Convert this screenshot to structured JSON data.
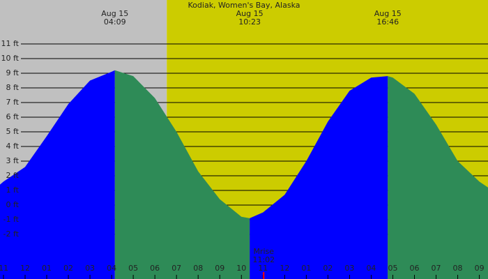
{
  "chart_data": {
    "type": "area",
    "title": "Kodiak, Women's Bay, Alaska",
    "sunrise": 6.55,
    "night_color": "#c0c0c0",
    "day_color": "#cccc00",
    "rising_color": "#0000ff",
    "falling_color": "#2e8b57",
    "grid": true,
    "xlim": [
      -1.16,
      21.4
    ],
    "ylim": [
      -5.05,
      14
    ],
    "x": [
      -1.16,
      -1,
      0,
      1,
      2,
      3,
      4,
      4.15,
      5,
      6,
      7,
      8,
      9,
      10,
      10.383,
      11,
      12,
      13,
      14,
      15,
      16,
      16.767,
      17,
      18,
      19,
      20,
      21,
      21.4
    ],
    "values": [
      1.4,
      1.6,
      2.6,
      4.7,
      6.9,
      8.5,
      9.1,
      9.2,
      8.8,
      7.3,
      5.0,
      2.3,
      0.4,
      -0.8,
      -0.9,
      -0.5,
      0.7,
      3.0,
      5.7,
      7.8,
      8.7,
      8.8,
      8.7,
      7.6,
      5.5,
      3.0,
      1.6,
      1.2
    ],
    "events": [
      {
        "date": "Aug 15",
        "time": "04:09",
        "x": 4.15
      },
      {
        "date": "Aug 15",
        "time": "10:23",
        "x": 10.383
      },
      {
        "date": "Aug 15",
        "time": "16:46",
        "x": 16.767
      }
    ],
    "moonrise": {
      "label": "Mrise",
      "time": "11:02",
      "x": 11.03,
      "color": "#ff0000"
    },
    "yticks": [
      {
        "value": 11,
        "label": "11 ft"
      },
      {
        "value": 10,
        "label": "10 ft"
      },
      {
        "value": 9,
        "label": "9 ft"
      },
      {
        "value": 8,
        "label": "8 ft"
      },
      {
        "value": 7,
        "label": "7 ft"
      },
      {
        "value": 6,
        "label": "6 ft"
      },
      {
        "value": 5,
        "label": "5 ft"
      },
      {
        "value": 4,
        "label": "4 ft"
      },
      {
        "value": 3,
        "label": "3 ft"
      },
      {
        "value": 2,
        "label": "2 ft"
      },
      {
        "value": 1,
        "label": "1 ft"
      },
      {
        "value": 0,
        "label": "0 ft"
      },
      {
        "value": -1,
        "label": "-1 ft"
      },
      {
        "value": -2,
        "label": "-2 ft"
      }
    ],
    "xticks": [
      {
        "value": -1,
        "label": "11"
      },
      {
        "value": 0,
        "label": "12"
      },
      {
        "value": 1,
        "label": "01"
      },
      {
        "value": 2,
        "label": "02"
      },
      {
        "value": 3,
        "label": "03"
      },
      {
        "value": 4,
        "label": "04"
      },
      {
        "value": 5,
        "label": "05"
      },
      {
        "value": 6,
        "label": "06"
      },
      {
        "value": 7,
        "label": "07"
      },
      {
        "value": 8,
        "label": "08"
      },
      {
        "value": 9,
        "label": "09"
      },
      {
        "value": 10,
        "label": "10"
      },
      {
        "value": 11,
        "label": "11"
      },
      {
        "value": 12,
        "label": "12"
      },
      {
        "value": 13,
        "label": "01"
      },
      {
        "value": 14,
        "label": "02"
      },
      {
        "value": 15,
        "label": "03"
      },
      {
        "value": 16,
        "label": "04"
      },
      {
        "value": 17,
        "label": "05"
      },
      {
        "value": 18,
        "label": "06"
      },
      {
        "value": 19,
        "label": "07"
      },
      {
        "value": 20,
        "label": "08"
      },
      {
        "value": 21,
        "label": "09"
      }
    ]
  }
}
